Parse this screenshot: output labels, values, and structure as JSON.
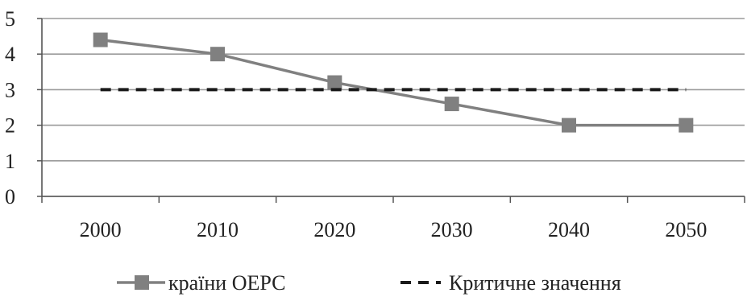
{
  "chart_data": {
    "type": "line",
    "categories": [
      "2000",
      "2010",
      "2020",
      "2030",
      "2040",
      "2050"
    ],
    "series": [
      {
        "name": "країни ОЕРС",
        "values": [
          4.4,
          4.0,
          3.2,
          2.6,
          2.0,
          2.0
        ],
        "color": "#808080",
        "style": "solid",
        "marker": "square"
      },
      {
        "name": "Критичне значення",
        "values": [
          3,
          3,
          3,
          3,
          3,
          3
        ],
        "color": "#1a1a1a",
        "style": "dashed",
        "marker": "none"
      }
    ],
    "yticks": [
      "0",
      "1",
      "2",
      "3",
      "4",
      "5"
    ],
    "ylim": [
      0,
      5
    ],
    "grid": true,
    "legend": "bottom"
  }
}
